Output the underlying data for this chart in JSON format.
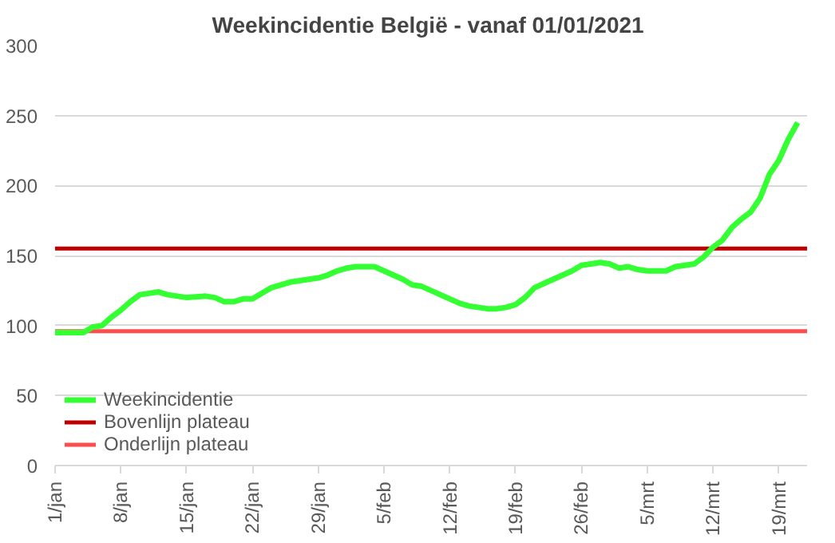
{
  "chart_data": {
    "type": "line",
    "title": "Weekincidentie  België - vanaf 01/01/2021",
    "x": [
      "2021-01-01",
      "2021-01-04",
      "2021-01-05",
      "2021-01-06",
      "2021-01-07",
      "2021-01-08",
      "2021-01-09",
      "2021-01-10",
      "2021-01-11",
      "2021-01-12",
      "2021-01-13",
      "2021-01-14",
      "2021-01-15",
      "2021-01-17",
      "2021-01-18",
      "2021-01-19",
      "2021-01-20",
      "2021-01-21",
      "2021-01-22",
      "2021-01-23",
      "2021-01-24",
      "2021-01-25",
      "2021-01-26",
      "2021-01-27",
      "2021-01-28",
      "2021-01-29",
      "2021-01-30",
      "2021-01-31",
      "2021-02-01",
      "2021-02-02",
      "2021-02-03",
      "2021-02-04",
      "2021-02-05",
      "2021-02-06",
      "2021-02-07",
      "2021-02-08",
      "2021-02-09",
      "2021-02-10",
      "2021-02-11",
      "2021-02-12",
      "2021-02-13",
      "2021-02-14",
      "2021-02-15",
      "2021-02-16",
      "2021-02-17",
      "2021-02-18",
      "2021-02-19",
      "2021-02-20",
      "2021-02-21",
      "2021-02-22",
      "2021-02-23",
      "2021-02-24",
      "2021-02-25",
      "2021-02-26",
      "2021-02-27",
      "2021-02-28",
      "2021-03-01",
      "2021-03-02",
      "2021-03-03",
      "2021-03-04",
      "2021-03-05",
      "2021-03-06",
      "2021-03-07",
      "2021-03-08",
      "2021-03-09",
      "2021-03-10",
      "2021-03-11",
      "2021-03-12",
      "2021-03-13",
      "2021-03-14",
      "2021-03-15",
      "2021-03-16",
      "2021-03-17",
      "2021-03-18",
      "2021-03-19",
      "2021-03-20",
      "2021-03-21"
    ],
    "series": [
      {
        "name": "Weekincidentie",
        "color": "#33ff33",
        "values": [
          95,
          95,
          99,
          100,
          106,
          111,
          117,
          122,
          123,
          124,
          122,
          121,
          120,
          121,
          120,
          117,
          117,
          119,
          119,
          123,
          127,
          129,
          131,
          132,
          133,
          134,
          136,
          139,
          141,
          142,
          142,
          142,
          139,
          136,
          133,
          129,
          128,
          125,
          122,
          119,
          116,
          114,
          113,
          112,
          112,
          113,
          115,
          120,
          127,
          130,
          133,
          136,
          139,
          143,
          144,
          145,
          144,
          141,
          142,
          140,
          139,
          139,
          139,
          142,
          143,
          144,
          149,
          156,
          161,
          170,
          176,
          181,
          191,
          208,
          218,
          233,
          245
        ]
      }
    ],
    "ref_lines": [
      {
        "axis": "y",
        "value": 155,
        "label": "Bovenlijn plateau",
        "color": "#c00000"
      },
      {
        "axis": "y",
        "value": 96,
        "label": "Onderlijn plateau",
        "color": "#ff4d4d"
      }
    ],
    "xlim": [
      "2021-01-01",
      "2021-03-22"
    ],
    "xticks": [
      {
        "value": "2021-01-01",
        "label": "1/jan"
      },
      {
        "value": "2021-01-08",
        "label": "8/jan"
      },
      {
        "value": "2021-01-15",
        "label": "15/jan"
      },
      {
        "value": "2021-01-22",
        "label": "22/jan"
      },
      {
        "value": "2021-01-29",
        "label": "29/jan"
      },
      {
        "value": "2021-02-05",
        "label": "5/feb"
      },
      {
        "value": "2021-02-12",
        "label": "12/feb"
      },
      {
        "value": "2021-02-19",
        "label": "19/feb"
      },
      {
        "value": "2021-02-26",
        "label": "26/feb"
      },
      {
        "value": "2021-03-05",
        "label": "5/mrt"
      },
      {
        "value": "2021-03-12",
        "label": "12/mrt"
      },
      {
        "value": "2021-03-19",
        "label": "19/mrt"
      }
    ],
    "ylim": [
      0,
      300
    ],
    "yticks": [
      0,
      50,
      100,
      150,
      200,
      250,
      300
    ],
    "grid": "y",
    "legend": "bottom left",
    "marker": "none",
    "line_style": "solid"
  }
}
